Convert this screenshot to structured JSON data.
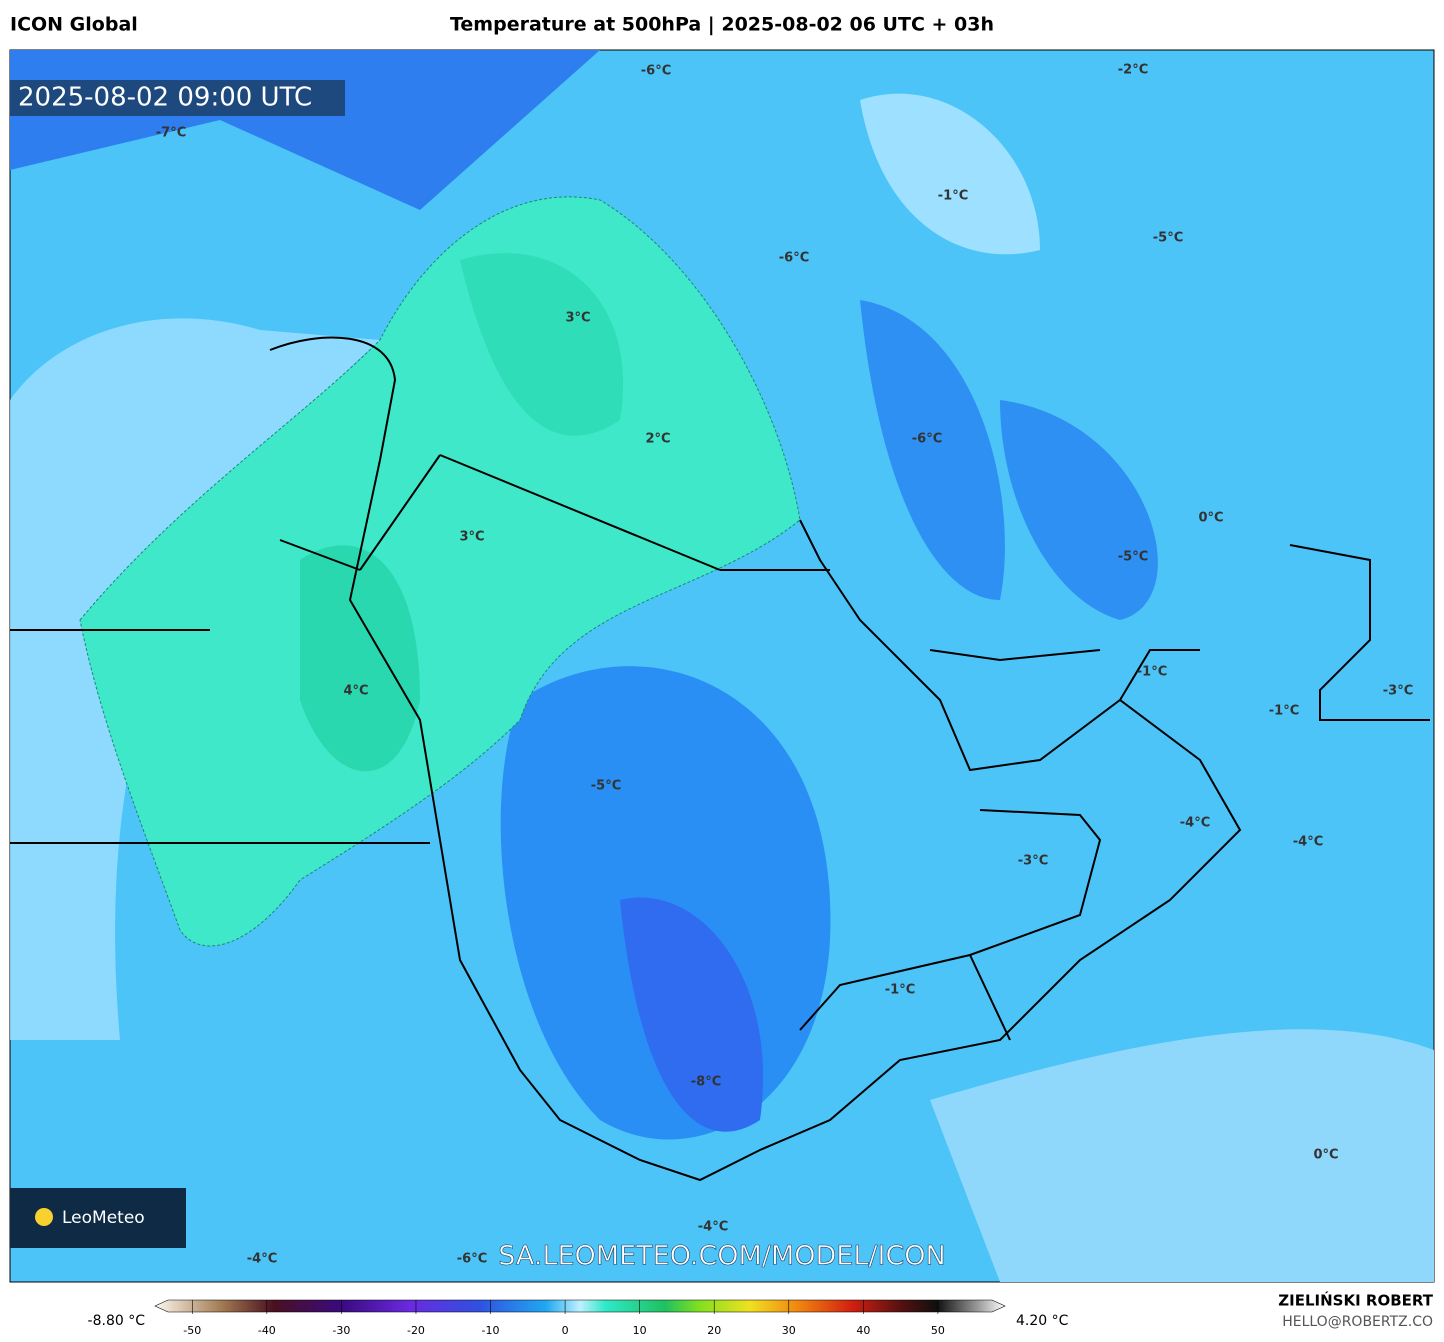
{
  "header": {
    "left": "ICON Global",
    "title": "Temperature at 500hPa | 2025-08-02 06 UTC + 03h"
  },
  "map": {
    "timestamp": "2025-08-02 09:00 UTC",
    "watermark": "SA.LEOMETEO.COM/MODEL/ICON",
    "logo": "LeoMeteo",
    "labels": [
      "-6°C",
      "-2°C",
      "-7°C",
      "-1°C",
      "-5°C",
      "-6°C",
      "3°C",
      "2°C",
      "-6°C",
      "0°C",
      "3°C",
      "-5°C",
      "4°C",
      "-1°C",
      "-3°C",
      "-1°C",
      "-5°C",
      "-4°C",
      "-4°C",
      "-3°C",
      "-1°C",
      "-8°C",
      "0°C",
      "-4°C",
      "-4°C",
      "-6°C"
    ]
  },
  "colorbar": {
    "min_label": "-8.80 °C",
    "max_label": "4.20 °C",
    "lim": [
      -55,
      59
    ],
    "ticks": [
      -50,
      -40,
      -30,
      -20,
      -10,
      0,
      10,
      20,
      30,
      40,
      50
    ]
  },
  "footer": {
    "author": "ZIELIŃSKI ROBERT",
    "email": "HELLO@ROBERTZ.CO"
  }
}
